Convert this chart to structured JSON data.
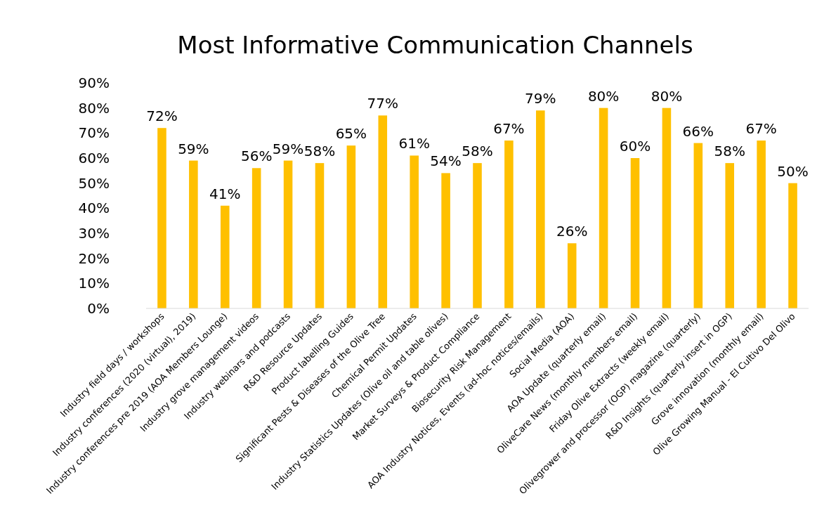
{
  "chart_data": {
    "type": "bar",
    "title": "Most Informative Communication Channels",
    "categories": [
      "Industry field days / workshops",
      "Industry conferences (2020 (virtual), 2019)",
      "Industry conferences pre 2019 (AOA Members Lounge)",
      "Industry grove management videos",
      "Industry webinars and podcasts",
      "R&D Resource Updates",
      "Product labelling Guides",
      "Significant Pests & Diseases of the Olive Tree",
      "Chemical Permit Updates",
      "Industry Statistics Updates (Olive oil and table olives)",
      "Market Surveys & Product Compliance",
      "Biosecurity Risk Management",
      "AOA Industry Notices, Events (ad-hoc notices/emails)",
      "Social Media (AOA)",
      "AOA Update (quarterly email)",
      "OliveCare News (monthly members email)",
      "Friday Olive Extracts  (weekly email)",
      "Olivegrower and processor (OGP) magazine (quarterly)",
      "R&D Insights (quarterly insert in OGP)",
      "Grove innovation (monthly email)",
      "Olive Growing Manual - El Cultivo Del Olivo"
    ],
    "values": [
      72,
      59,
      41,
      56,
      59,
      58,
      65,
      77,
      61,
      54,
      58,
      67,
      79,
      26,
      80,
      60,
      80,
      66,
      58,
      67,
      50
    ],
    "value_labels": [
      "72%",
      "59%",
      "41%",
      "56%",
      "59%",
      "58%",
      "65%",
      "77%",
      "61%",
      "54%",
      "58%",
      "67%",
      "79%",
      "26%",
      "80%",
      "60%",
      "80%",
      "66%",
      "58%",
      "67%",
      "50%"
    ],
    "color": "#ffc000",
    "ylim": [
      0,
      90
    ],
    "yticks": [
      {
        "value": 0,
        "label": "0%"
      },
      {
        "value": 10,
        "label": "10%"
      },
      {
        "value": 20,
        "label": "20%"
      },
      {
        "value": 30,
        "label": "30%"
      },
      {
        "value": 40,
        "label": "40%"
      },
      {
        "value": 50,
        "label": "50%"
      },
      {
        "value": 60,
        "label": "60%"
      },
      {
        "value": 70,
        "label": "70%"
      },
      {
        "value": 80,
        "label": "80%"
      },
      {
        "value": 90,
        "label": "90%"
      }
    ],
    "grid": false
  }
}
